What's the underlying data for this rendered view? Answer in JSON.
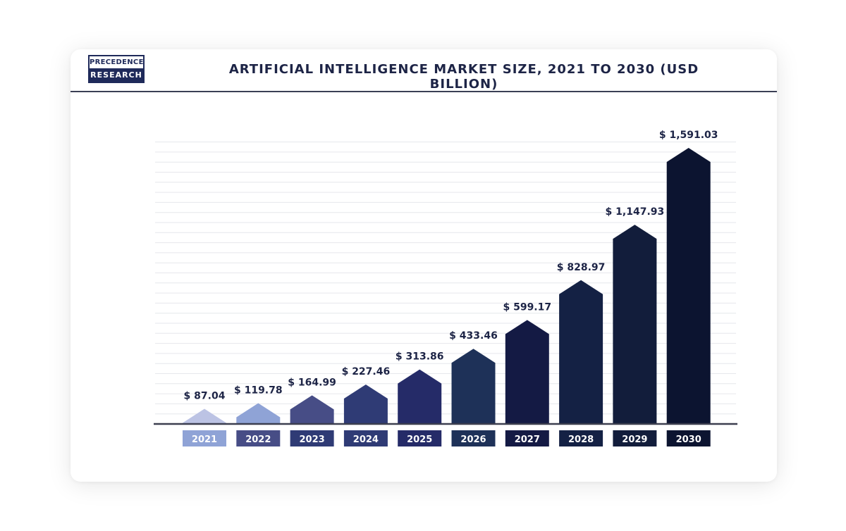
{
  "brand": {
    "top": "PRECEDENCE",
    "bottom": "RESEARCH"
  },
  "chart_data": {
    "type": "bar",
    "title": "ARTIFICIAL INTELLIGENCE MARKET SIZE, 2021 TO 2030 (USD BILLION)",
    "categories": [
      "2021",
      "2022",
      "2023",
      "2024",
      "2025",
      "2026",
      "2027",
      "2028",
      "2029",
      "2030"
    ],
    "values": [
      87.04,
      119.78,
      164.99,
      227.46,
      313.86,
      433.46,
      599.17,
      828.97,
      1147.93,
      1591.03
    ],
    "value_labels": [
      "$ 87.04",
      "$ 119.78",
      "$ 164.99",
      "$ 227.46",
      "$ 313.86",
      "$ 433.46",
      "$ 599.17",
      "$ 828.97",
      "$ 1,147.93",
      "$ 1,591.03"
    ],
    "bar_colors": [
      "#bcc3e4",
      "#8fa3d6",
      "#474d86",
      "#2f3b75",
      "#252b68",
      "#1e3158",
      "#141a44",
      "#142144",
      "#121d3b",
      "#0c1430"
    ],
    "label_box_colors": [
      "#8fa3d6",
      "#474d86",
      "#2f3b75",
      "#2f3b75",
      "#252b68",
      "#1e3158",
      "#141a44",
      "#142144",
      "#121d3b",
      "#0c1430"
    ],
    "grid": true,
    "legend": "none",
    "xlabel": "",
    "ylabel": ""
  }
}
